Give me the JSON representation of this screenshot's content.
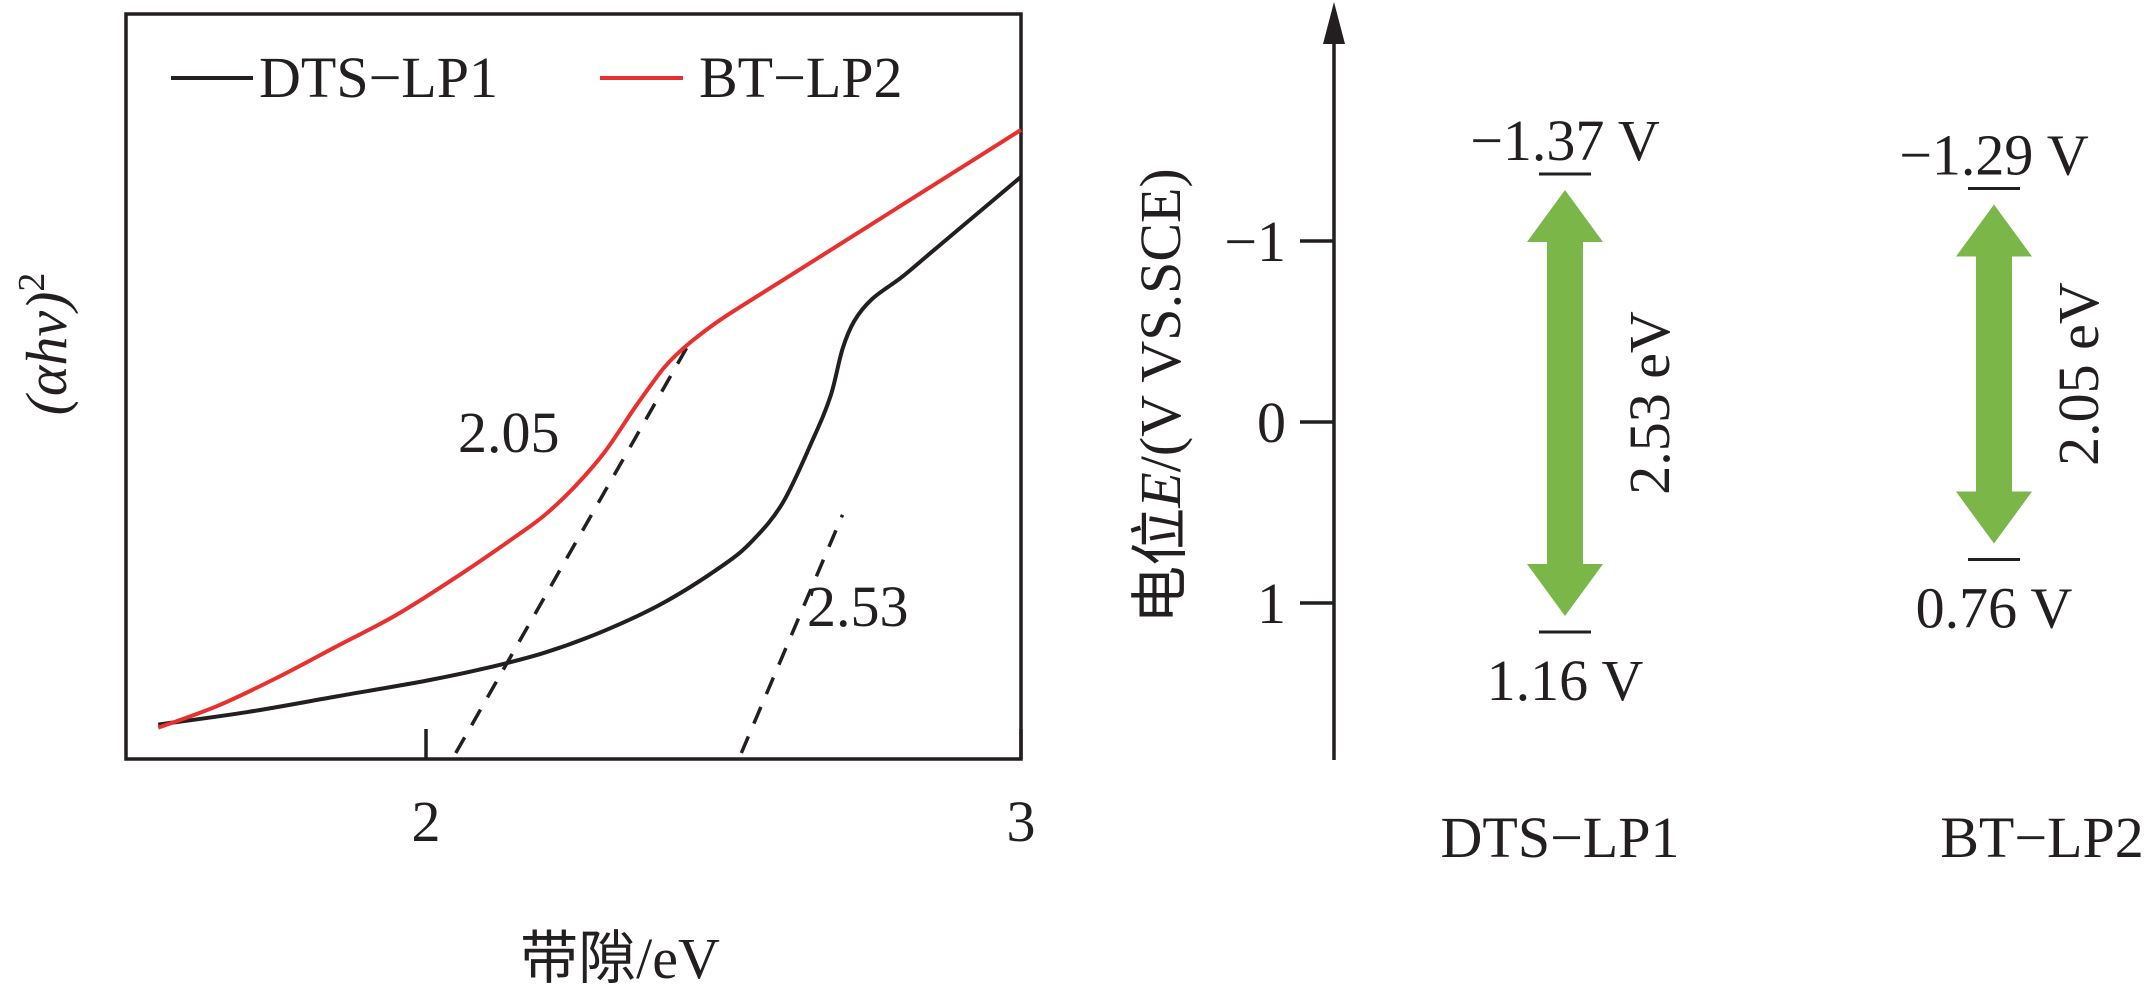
{
  "chart_data": [
    {
      "type": "line",
      "xlabel": "带隙/eV",
      "ylabel_html": "(αhν)",
      "ylabel_base": "(αhν)",
      "ylabel_sup": "2",
      "xlim": [
        1.5,
        3.0
      ],
      "ylim": [
        0,
        100
      ],
      "x_ticks": [
        2,
        3
      ],
      "x_tick_labels": [
        "2",
        "3"
      ],
      "legend": "top-left",
      "grid": false,
      "colors": {
        "DTS-LP1": "#231f20",
        "BT-LP2": "#e8312f",
        "tangent": "#231f20"
      },
      "series": [
        {
          "name": "DTS−LP1",
          "x": [
            1.55,
            1.7,
            1.85,
            2.0,
            2.1,
            2.2,
            2.3,
            2.4,
            2.5,
            2.55,
            2.6,
            2.65,
            2.68,
            2.7,
            2.72,
            2.75,
            2.8,
            2.85,
            2.9,
            2.95,
            3.0
          ],
          "y": [
            5.5,
            7.5,
            10,
            12.5,
            14.5,
            17,
            20.5,
            25,
            31,
            35,
            41,
            51,
            58,
            65.5,
            70,
            73.5,
            77,
            81,
            85,
            89,
            93
          ]
        },
        {
          "name": "BT−LP2",
          "x": [
            1.55,
            1.65,
            1.75,
            1.85,
            1.95,
            2.05,
            2.15,
            2.2,
            2.25,
            2.3,
            2.35,
            2.38,
            2.4,
            2.42,
            2.45,
            2.5,
            2.6,
            2.7,
            2.8,
            2.9,
            3.0
          ],
          "y": [
            5,
            8.5,
            13,
            18,
            23,
            29,
            35.5,
            39,
            43.5,
            49,
            56,
            60,
            62.5,
            64.5,
            67,
            70.5,
            76.5,
            82.5,
            88.5,
            94.5,
            100.5
          ]
        }
      ],
      "tangents": [
        {
          "label": "2.05",
          "x": [
            2.05,
            2.44
          ],
          "y": [
            0,
            66
          ]
        },
        {
          "label": "2.53",
          "x": [
            2.53,
            2.7
          ],
          "y": [
            0,
            39
          ]
        }
      ]
    },
    {
      "type": "bar",
      "ylabel_pre": "电位",
      "ylabel_italic": "E",
      "ylabel_post": "/(V VS.SCE)",
      "ylim": [
        -2.3,
        1.85
      ],
      "y_inverted": true,
      "y_ticks": [
        -1,
        0,
        1
      ],
      "y_tick_labels": [
        "−1",
        "0",
        "1"
      ],
      "arrow_color": "#7ab648",
      "categories": [
        "DTS−LP1",
        "BT−LP2"
      ],
      "levels": [
        {
          "name": "DTS−LP1",
          "top": -1.37,
          "bottom": 1.16,
          "top_label": "−1.37 V",
          "bottom_label": "1.16 V",
          "gap_label": "2.53 eV"
        },
        {
          "name": "BT−LP2",
          "top": -1.29,
          "bottom": 0.76,
          "top_label": "−1.29 V",
          "bottom_label": "0.76 V",
          "gap_label": "2.05 eV"
        }
      ]
    }
  ]
}
